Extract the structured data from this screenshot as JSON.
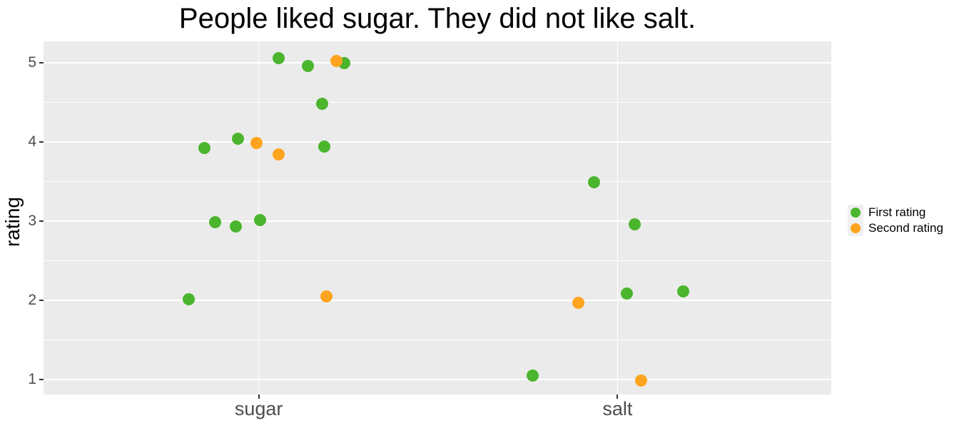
{
  "title": "People liked sugar. They did not like salt.",
  "chart_data": {
    "type": "scatter",
    "title": "People liked sugar. They did not like salt.",
    "xlabel": "",
    "ylabel": "rating",
    "categories": [
      "sugar",
      "salt"
    ],
    "category_positions": [
      1,
      2
    ],
    "y_ticks": [
      1,
      2,
      3,
      4,
      5
    ],
    "y_minor_ticks": [
      1.5,
      2.5,
      3.5,
      4.5
    ],
    "ylim": [
      0.81,
      5.27
    ],
    "xlim": [
      0.4,
      2.6
    ],
    "grid": true,
    "legend_position": "right",
    "panel_background": "#EBEBEB",
    "grid_color": "#FFFFFF",
    "axis_text_color": "#4d4d4d",
    "series": [
      {
        "name": "First rating",
        "color": "#4BB52E",
        "points": [
          {
            "x": 1.056,
            "y": 5.06
          },
          {
            "x": 1.137,
            "y": 4.96
          },
          {
            "x": 1.239,
            "y": 5.0
          },
          {
            "x": 1.177,
            "y": 4.48
          },
          {
            "x": 0.849,
            "y": 3.92
          },
          {
            "x": 0.942,
            "y": 4.04
          },
          {
            "x": 1.183,
            "y": 3.94
          },
          {
            "x": 0.879,
            "y": 2.99
          },
          {
            "x": 0.936,
            "y": 2.93
          },
          {
            "x": 1.004,
            "y": 3.01
          },
          {
            "x": 0.805,
            "y": 2.01
          },
          {
            "x": 1.934,
            "y": 3.49
          },
          {
            "x": 2.048,
            "y": 2.96
          },
          {
            "x": 2.026,
            "y": 2.09
          },
          {
            "x": 2.183,
            "y": 2.11
          },
          {
            "x": 1.763,
            "y": 1.05
          }
        ]
      },
      {
        "name": "Second rating",
        "color": "#FFA41E",
        "points": [
          {
            "x": 1.217,
            "y": 5.02
          },
          {
            "x": 0.994,
            "y": 3.99
          },
          {
            "x": 1.056,
            "y": 3.84
          },
          {
            "x": 1.189,
            "y": 2.05
          },
          {
            "x": 1.891,
            "y": 1.97
          },
          {
            "x": 2.066,
            "y": 0.99
          }
        ]
      }
    ]
  }
}
